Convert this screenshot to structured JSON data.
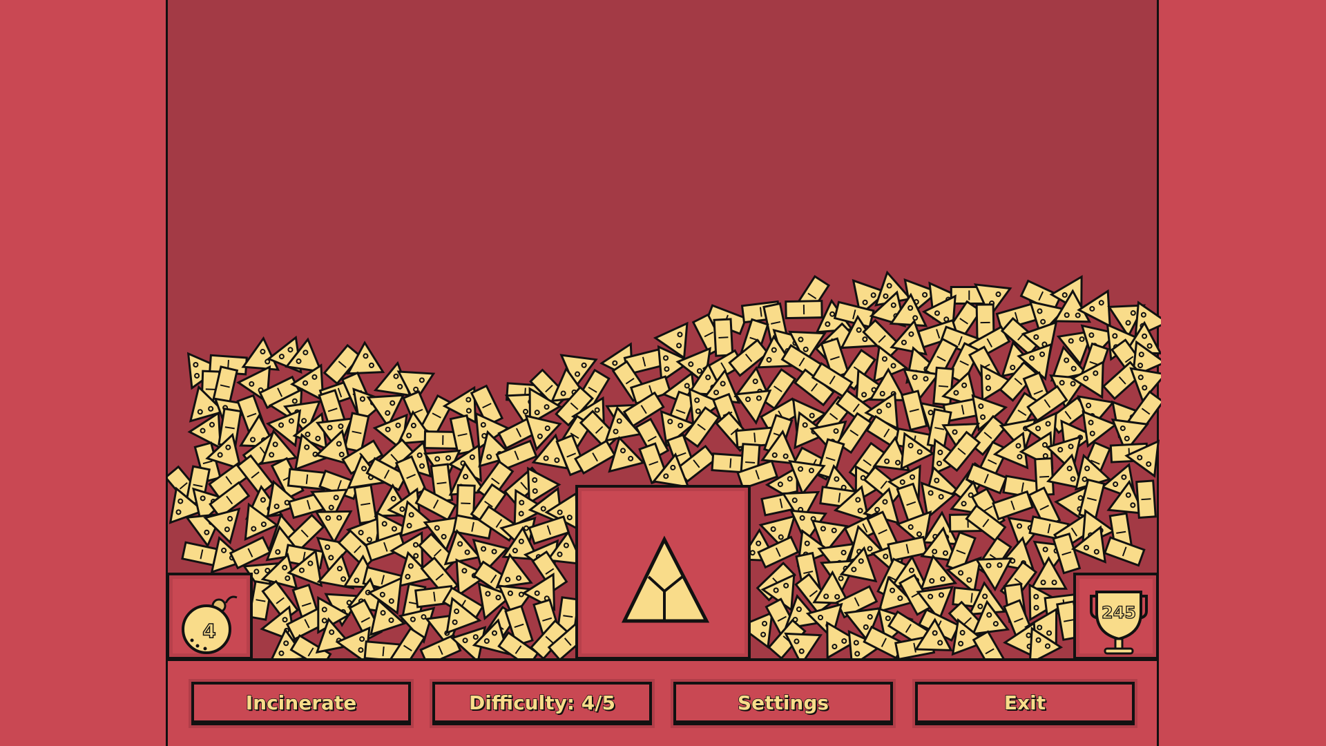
{
  "colors": {
    "outer_background": "#C94853",
    "playfield_background": "#A33A45",
    "piece_fill": "#F9DC8A",
    "outline": "#111111"
  },
  "bombs": {
    "count": "4",
    "icon": "bomb-icon"
  },
  "score": {
    "value": "245",
    "icon": "trophy-icon"
  },
  "target": {
    "shape": "triangle-split-into-three",
    "icon": "target-triangle-icon"
  },
  "buttons": {
    "incinerate": "Incinerate",
    "difficulty": "Difficulty: 4/5",
    "settings": "Settings",
    "exit": "Exit"
  }
}
